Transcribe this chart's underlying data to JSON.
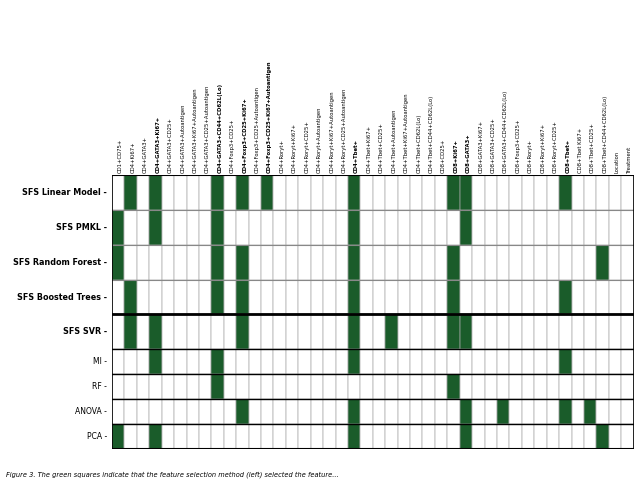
{
  "columns": [
    "CD1+CD75+",
    "CD4+Ki67+",
    "CD4+GATA3+",
    "CD4+GATA3+Ki67+",
    "CD4+GATA3+CD25+",
    "CD4+GATA3+Autoantigen",
    "CD4+GATA3+Ki67+Autoantigen",
    "CD4+GATA3+CD25+Autoantigen",
    "CD4+GATA3+CD44+CD62L(Lo)",
    "CD4+Foxp3+CD25+",
    "CD4+Foxp3+CD25+Ki67+",
    "CD4+Foxp3+CD25+Autoantigen",
    "CD4+Foxp3+CD25+Ki67+Autoantigen",
    "CD4+Roryt+",
    "CD4+Roryt+Ki67+",
    "CD4+Roryt+CD25+",
    "CD4+Roryt+Autoantigen",
    "CD4+Roryt+Ki67+Autoantigen",
    "CD4+Roryt+CD25+Autoantigen",
    "CD4+Tbet+",
    "CD4+Tbet+Ki67+",
    "CD4+Tbet+CD25+",
    "CD4+Tbet+Autoantigen",
    "CD4+Tbet+Ki67+Autoantigen",
    "CD4+Tbet+CD62L(Lo)",
    "CD4+Tbet+CD44+CD62L(Lo)",
    "CD8+CD25+",
    "CD8+Ki67+",
    "CD8+GATA3+",
    "CD8+GATA3+Ki67+",
    "CD8+GATA3+CD25+",
    "CD8+GATA3+CD44+CD62L(Lo)",
    "CD8+Foxp3+CD25+",
    "CD8+Roryt+",
    "CD8+Roryt+Ki67+",
    "CD8+Roryt+CD25+",
    "CD8+Tbet+",
    "CD8+Tbet Ki67+",
    "CD8+Tbet+CD25+",
    "CD8+Tbet+CD44+CD62L(Lo)",
    "Location",
    "Treatment"
  ],
  "rows": [
    "SFS Linear Model",
    "SFS PMKL",
    "SFS Random Forest",
    "SFS Boosted Trees",
    "SFS SVR",
    "MI",
    "RF",
    "ANOVA",
    "PCA"
  ],
  "bold_rows": [
    0,
    1,
    2,
    3,
    4
  ],
  "bold_columns": [
    3,
    8,
    10,
    12,
    19,
    27,
    28,
    36
  ],
  "row_heights": [
    1.4,
    1.4,
    1.4,
    1.4,
    1.4,
    1.0,
    1.0,
    1.0,
    1.0
  ],
  "grid": [
    [
      0,
      1,
      0,
      1,
      0,
      0,
      0,
      0,
      1,
      0,
      1,
      0,
      1,
      0,
      0,
      0,
      0,
      0,
      0,
      1,
      0,
      0,
      0,
      0,
      0,
      0,
      0,
      1,
      1,
      0,
      0,
      0,
      0,
      0,
      0,
      0,
      1,
      0,
      0,
      0,
      0,
      0
    ],
    [
      1,
      0,
      0,
      1,
      0,
      0,
      0,
      0,
      1,
      0,
      0,
      0,
      0,
      0,
      0,
      0,
      0,
      0,
      0,
      1,
      0,
      0,
      0,
      0,
      0,
      0,
      0,
      0,
      1,
      0,
      0,
      0,
      0,
      0,
      0,
      0,
      0,
      0,
      0,
      0,
      0,
      0
    ],
    [
      1,
      0,
      0,
      0,
      0,
      0,
      0,
      0,
      1,
      0,
      1,
      0,
      0,
      0,
      0,
      0,
      0,
      0,
      0,
      1,
      0,
      0,
      0,
      0,
      0,
      0,
      0,
      1,
      0,
      0,
      0,
      0,
      0,
      0,
      0,
      0,
      0,
      0,
      0,
      1,
      0,
      0
    ],
    [
      0,
      1,
      0,
      0,
      0,
      0,
      0,
      0,
      1,
      0,
      1,
      0,
      0,
      0,
      0,
      0,
      0,
      0,
      0,
      1,
      0,
      0,
      0,
      0,
      0,
      0,
      0,
      1,
      0,
      0,
      0,
      0,
      0,
      0,
      0,
      0,
      1,
      0,
      0,
      0,
      0,
      0
    ],
    [
      0,
      1,
      0,
      1,
      0,
      0,
      0,
      0,
      0,
      0,
      1,
      0,
      0,
      0,
      0,
      0,
      0,
      0,
      0,
      1,
      0,
      0,
      1,
      0,
      0,
      0,
      0,
      1,
      1,
      0,
      0,
      0,
      0,
      0,
      0,
      0,
      0,
      0,
      0,
      0,
      0,
      0
    ],
    [
      0,
      0,
      0,
      1,
      0,
      0,
      0,
      0,
      1,
      0,
      0,
      0,
      0,
      0,
      0,
      0,
      0,
      0,
      0,
      1,
      0,
      0,
      0,
      0,
      0,
      0,
      0,
      0,
      0,
      0,
      0,
      0,
      0,
      0,
      0,
      0,
      1,
      0,
      0,
      0,
      0,
      0
    ],
    [
      0,
      0,
      0,
      0,
      0,
      0,
      0,
      0,
      1,
      0,
      0,
      0,
      0,
      0,
      0,
      0,
      0,
      0,
      0,
      0,
      0,
      0,
      0,
      0,
      0,
      0,
      0,
      1,
      0,
      0,
      0,
      0,
      0,
      0,
      0,
      0,
      0,
      0,
      0,
      0,
      0,
      0
    ],
    [
      0,
      0,
      0,
      0,
      0,
      0,
      0,
      0,
      0,
      0,
      1,
      0,
      0,
      0,
      0,
      0,
      0,
      0,
      0,
      1,
      0,
      0,
      0,
      0,
      0,
      0,
      0,
      0,
      1,
      0,
      0,
      1,
      0,
      0,
      0,
      0,
      1,
      0,
      1,
      0,
      0,
      0
    ],
    [
      1,
      0,
      0,
      1,
      0,
      0,
      0,
      0,
      0,
      0,
      0,
      0,
      0,
      0,
      0,
      0,
      0,
      0,
      0,
      1,
      0,
      0,
      0,
      0,
      0,
      0,
      0,
      0,
      1,
      0,
      0,
      0,
      0,
      0,
      0,
      0,
      0,
      0,
      0,
      1,
      0,
      0
    ]
  ],
  "dark_green": "#1a5c2a",
  "white": "#ffffff",
  "caption": "Figure 3. The green squares indicate that the feature selection method (left) selected the feature..."
}
